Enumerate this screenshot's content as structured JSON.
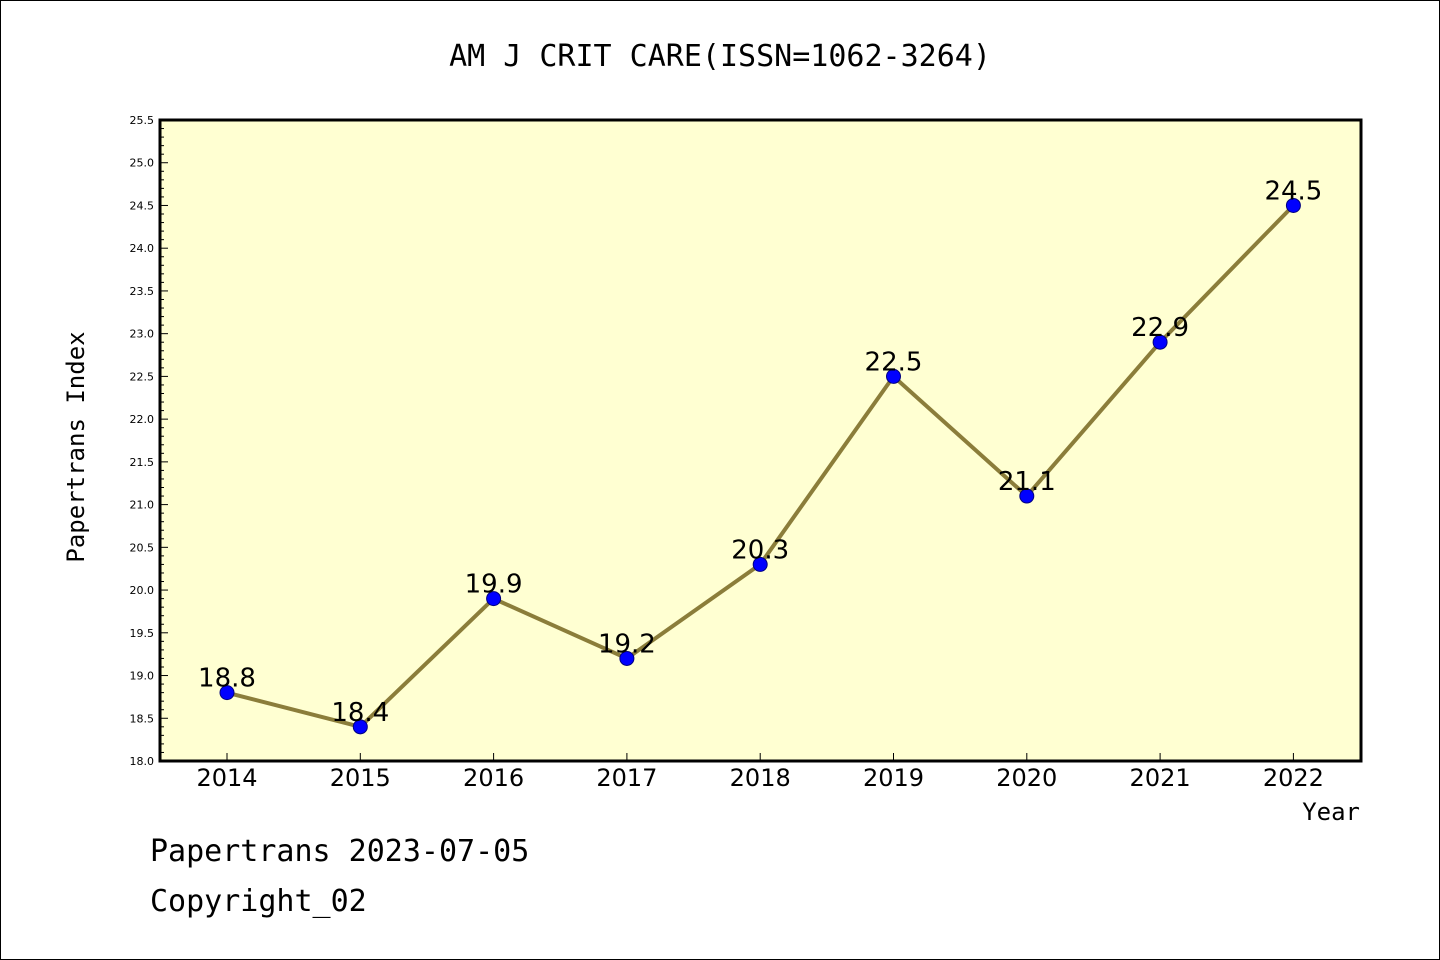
{
  "footer": {
    "line1": "Papertrans 2023-07-05",
    "line2": "Copyright_02"
  },
  "colors": {
    "background": "#ffffff",
    "plot_background": "#ffffd2",
    "line": "#8b7d3a",
    "marker": "#0000ff",
    "marker_edge": "#000080",
    "axis": "#000000"
  },
  "chart_data": {
    "type": "line",
    "title": "AM J CRIT CARE(ISSN=1062-3264)",
    "xlabel": "Year",
    "ylabel": "Papertrans Index",
    "categories": [
      "2014",
      "2015",
      "2016",
      "2017",
      "2018",
      "2019",
      "2020",
      "2021",
      "2022"
    ],
    "series": [
      {
        "values": [
          18.8,
          18.4,
          19.9,
          19.2,
          20.3,
          22.5,
          21.1,
          22.9,
          24.5
        ],
        "data_labels": [
          "18.8",
          "18.4",
          "19.9",
          "19.2",
          "20.3",
          "22.5",
          "21.1",
          "22.9",
          "24.5"
        ]
      }
    ],
    "ylim": [
      18.0,
      25.5
    ],
    "yticks": [
      "18.0",
      "18.5",
      "19.0",
      "19.5",
      "20.0",
      "20.5",
      "21.0",
      "21.5",
      "22.0",
      "22.5",
      "23.0",
      "23.5",
      "24.0",
      "24.5",
      "25.0",
      "25.5"
    ],
    "grid": false,
    "legend": "none"
  }
}
